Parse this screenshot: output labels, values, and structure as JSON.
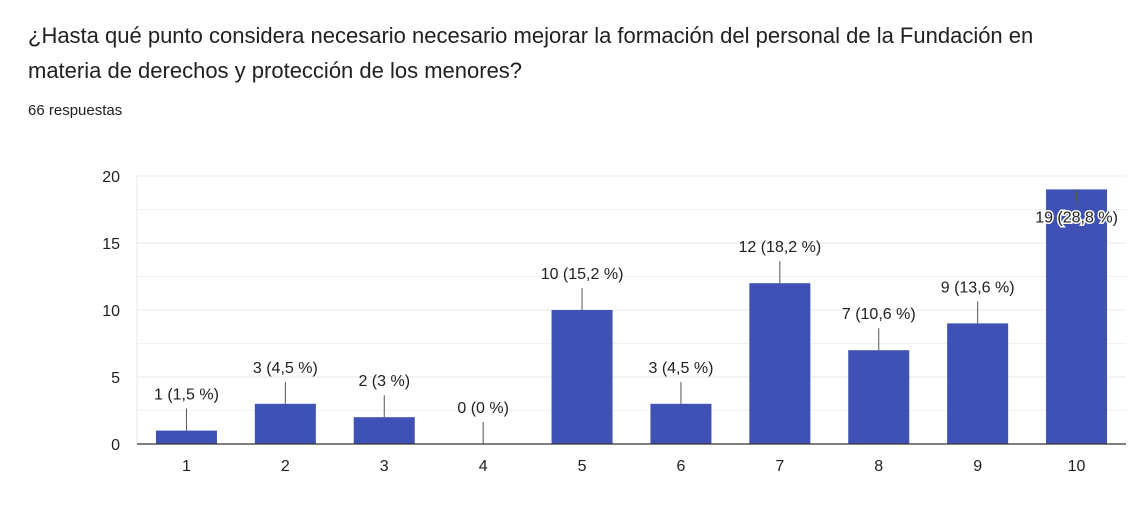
{
  "question": {
    "title": "¿Hasta qué punto considera necesario necesario mejorar la formación del personal de la Fundación en materia de derechos y protección de los menores?",
    "responses": "66 respuestas"
  },
  "colors": {
    "bar": "#3f51b5",
    "grid": "#e8e8e8",
    "axis": "#333333",
    "leader": "#555555"
  },
  "chart_data": {
    "type": "bar",
    "title": "",
    "xlabel": "",
    "ylabel": "",
    "categories": [
      "1",
      "2",
      "3",
      "4",
      "5",
      "6",
      "7",
      "8",
      "9",
      "10"
    ],
    "values": [
      1,
      3,
      2,
      0,
      10,
      3,
      12,
      7,
      9,
      19
    ],
    "data_labels": [
      "1 (1,5 %)",
      "3 (4,5 %)",
      "2 (3 %)",
      "0 (0 %)",
      "10 (15,2 %)",
      "3 (4,5 %)",
      "12 (18,2 %)",
      "7 (10,6 %)",
      "9 (13,6 %)",
      "19 (28,8 %)"
    ],
    "yticks": [
      0,
      5,
      10,
      15,
      20
    ],
    "ylim": [
      0,
      20
    ],
    "grid": true,
    "legend": "none"
  }
}
